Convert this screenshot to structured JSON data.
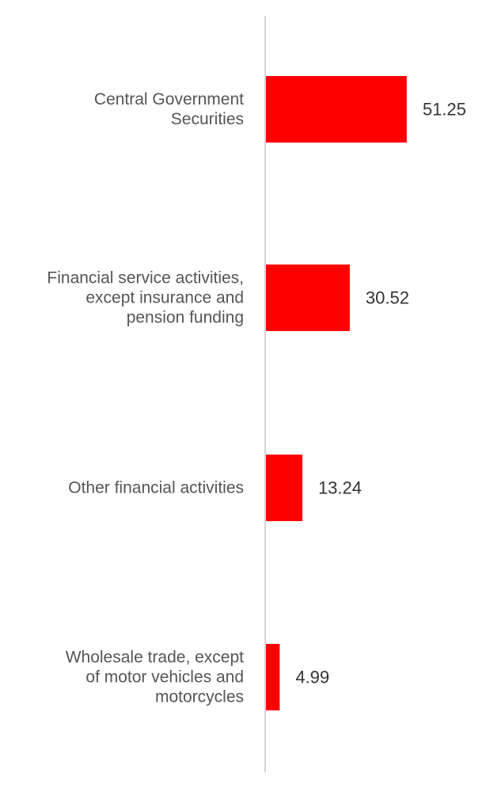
{
  "chart_data": {
    "type": "bar",
    "orientation": "horizontal",
    "categories": [
      [
        "Central Government",
        "Securities"
      ],
      [
        "Financial service activities,",
        "except insurance and",
        "pension funding"
      ],
      [
        "Other financial activities"
      ],
      [
        "Wholesale trade, except",
        "of motor vehicles and",
        "motorcycles"
      ]
    ],
    "values": [
      51.25,
      30.52,
      13.24,
      4.99
    ],
    "value_labels": [
      "51.25",
      "30.52",
      "13.24",
      "4.99"
    ],
    "bar_color": "#ff0000",
    "xlim": [
      0,
      100
    ],
    "title": "",
    "xlabel": "",
    "ylabel": "",
    "grid": false,
    "legend": "none"
  }
}
